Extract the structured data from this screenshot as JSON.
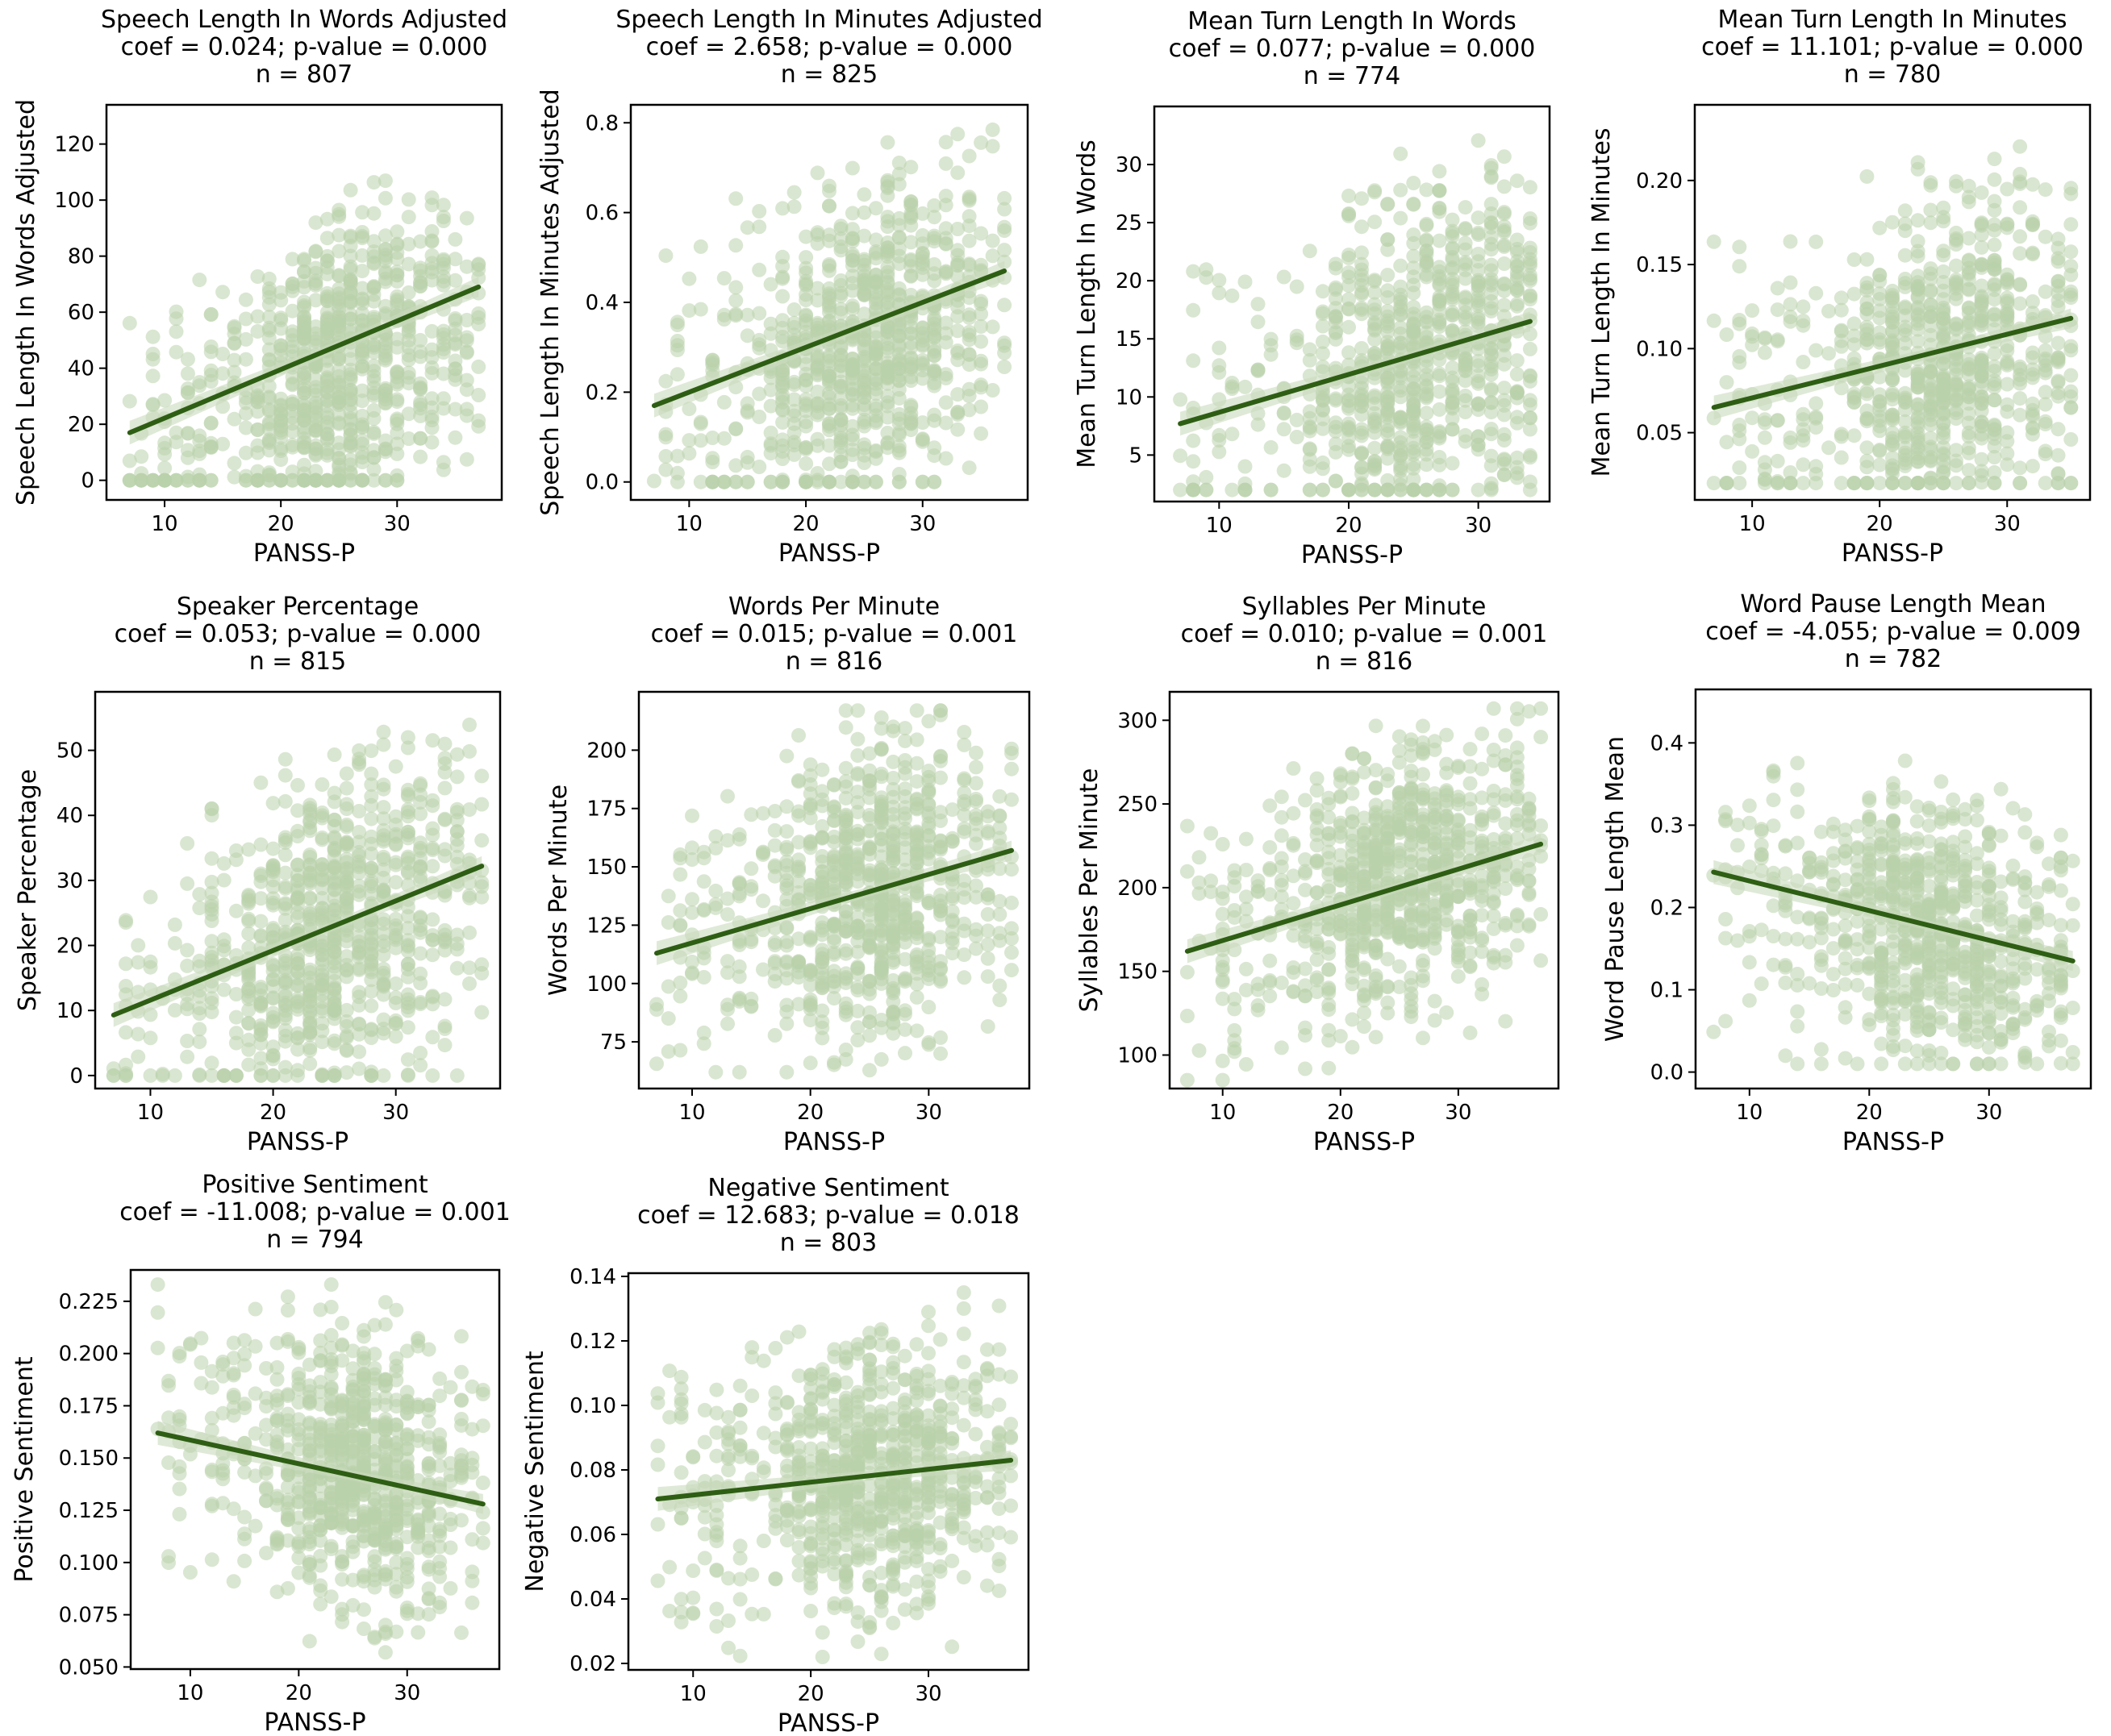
{
  "figure": {
    "x_common_label": "PANSS-P",
    "colors": {
      "points": "#b9d2ac",
      "line": "#2e5e14",
      "band": "#c9dbbd",
      "axis": "#000000"
    }
  },
  "chart_data": [
    {
      "type": "scatter",
      "title": "Speech Length In Words Adjusted",
      "stats_line": "coef = 0.024; p-value = 0.000",
      "n_label": "n = 807",
      "xlabel": "PANSS-P",
      "ylabel": "Speech Length In Words Adjusted",
      "xlim": [
        5,
        39
      ],
      "ylim": [
        -7,
        134
      ],
      "xticks": [
        10,
        20,
        30
      ],
      "yticks": [
        0,
        20,
        40,
        60,
        80,
        100,
        120
      ],
      "ytick_labels": [
        "0",
        "20",
        "40",
        "60",
        "80",
        "100",
        "120"
      ],
      "x_range": [
        7,
        37
      ],
      "y_range": [
        0,
        128
      ],
      "y_center": 42,
      "y_spread": 26,
      "fit": {
        "x": [
          7,
          37
        ],
        "y": [
          17,
          69
        ]
      }
    },
    {
      "type": "scatter",
      "title": "Speech Length In Minutes Adjusted",
      "stats_line": "coef = 2.658; p-value = 0.000",
      "n_label": "n = 825",
      "xlabel": "PANSS-P",
      "ylabel": "Speech Length In Minutes Adjusted",
      "xlim": [
        5,
        39
      ],
      "ylim": [
        -0.04,
        0.84
      ],
      "xticks": [
        10,
        20,
        30
      ],
      "yticks": [
        0,
        0.2,
        0.4,
        0.6,
        0.8
      ],
      "ytick_labels": [
        "0.0",
        "0.2",
        "0.4",
        "0.6",
        "0.8"
      ],
      "x_range": [
        7,
        37
      ],
      "y_range": [
        0.0,
        0.79
      ],
      "y_center": 0.32,
      "y_spread": 0.17,
      "fit": {
        "x": [
          7,
          37
        ],
        "y": [
          0.17,
          0.47
        ]
      }
    },
    {
      "type": "scatter",
      "title": "Mean Turn Length In Words",
      "stats_line": "coef = 0.077; p-value = 0.000",
      "n_label": "n = 774",
      "xlabel": "PANSS-P",
      "ylabel": "Mean Turn Length In Words",
      "xlim": [
        5,
        35.5
      ],
      "ylim": [
        1,
        35
      ],
      "xticks": [
        10,
        20,
        30
      ],
      "yticks": [
        5,
        10,
        15,
        20,
        25,
        30
      ],
      "ytick_labels": [
        "5",
        "10",
        "15",
        "20",
        "25",
        "30"
      ],
      "x_range": [
        7,
        34
      ],
      "y_range": [
        2,
        33
      ],
      "y_center": 13,
      "y_spread": 7,
      "fit": {
        "x": [
          7,
          34
        ],
        "y": [
          7.7,
          16.5
        ]
      }
    },
    {
      "type": "scatter",
      "title": "Mean Turn Length In Minutes",
      "stats_line": "coef = 11.101; p-value = 0.000",
      "n_label": "n = 780",
      "xlabel": "PANSS-P",
      "ylabel": "Mean Turn Length In Minutes",
      "xlim": [
        5.5,
        36.5
      ],
      "ylim": [
        0.01,
        0.245
      ],
      "xticks": [
        10,
        20,
        30
      ],
      "yticks": [
        0.05,
        0.1,
        0.15,
        0.2
      ],
      "ytick_labels": [
        "0.05",
        "0.10",
        "0.15",
        "0.20"
      ],
      "x_range": [
        7,
        35
      ],
      "y_range": [
        0.02,
        0.235
      ],
      "y_center": 0.09,
      "y_spread": 0.045,
      "fit": {
        "x": [
          7,
          35
        ],
        "y": [
          0.065,
          0.118
        ]
      }
    },
    {
      "type": "scatter",
      "title": "Speaker Percentage",
      "stats_line": "coef = 0.053; p-value = 0.000",
      "n_label": "n = 815",
      "xlabel": "PANSS-P",
      "ylabel": "Speaker Percentage",
      "xlim": [
        5.5,
        38.5
      ],
      "ylim": [
        -2,
        59
      ],
      "xticks": [
        10,
        20,
        30
      ],
      "yticks": [
        0,
        10,
        20,
        30,
        40,
        50
      ],
      "ytick_labels": [
        "0",
        "10",
        "20",
        "30",
        "40",
        "50"
      ],
      "x_range": [
        7,
        37
      ],
      "y_range": [
        0,
        56
      ],
      "y_center": 22,
      "y_spread": 12,
      "fit": {
        "x": [
          7,
          37
        ],
        "y": [
          9.3,
          32.2
        ]
      }
    },
    {
      "type": "scatter",
      "title": "Words Per Minute",
      "stats_line": "coef = 0.015; p-value = 0.001",
      "n_label": "n = 816",
      "xlabel": "PANSS-P",
      "ylabel": "Words Per Minute",
      "xlim": [
        5.5,
        38.5
      ],
      "ylim": [
        55,
        225
      ],
      "xticks": [
        10,
        20,
        30
      ],
      "yticks": [
        75,
        100,
        125,
        150,
        175,
        200
      ],
      "ytick_labels": [
        "75",
        "100",
        "125",
        "150",
        "175",
        "200"
      ],
      "x_range": [
        7,
        37
      ],
      "y_range": [
        62,
        217
      ],
      "y_center": 140,
      "y_spread": 30,
      "fit": {
        "x": [
          7,
          37
        ],
        "y": [
          113,
          157
        ]
      }
    },
    {
      "type": "scatter",
      "title": "Syllables Per Minute",
      "stats_line": "coef = 0.010; p-value = 0.001",
      "n_label": "n = 816",
      "xlabel": "PANSS-P",
      "ylabel": "Syllables Per Minute",
      "xlim": [
        5.5,
        38.5
      ],
      "ylim": [
        80,
        317
      ],
      "xticks": [
        10,
        20,
        30
      ],
      "yticks": [
        100,
        150,
        200,
        250,
        300
      ],
      "ytick_labels": [
        "100",
        "150",
        "200",
        "250",
        "300"
      ],
      "x_range": [
        7,
        37
      ],
      "y_range": [
        85,
        307
      ],
      "y_center": 205,
      "y_spread": 40,
      "fit": {
        "x": [
          7,
          37
        ],
        "y": [
          162,
          226
        ]
      }
    },
    {
      "type": "scatter",
      "title": "Word Pause Length Mean",
      "stats_line": "coef = -4.055; p-value = 0.009",
      "n_label": "n = 782",
      "xlabel": "PANSS-P",
      "ylabel": "Word Pause Length Mean",
      "xlim": [
        5.5,
        38.5
      ],
      "ylim": [
        -0.02,
        0.465
      ],
      "xticks": [
        10,
        20,
        30
      ],
      "yticks": [
        0,
        0.1,
        0.2,
        0.3,
        0.4
      ],
      "ytick_labels": [
        "0.0",
        "0.1",
        "0.2",
        "0.3",
        "0.4"
      ],
      "x_range": [
        7,
        37
      ],
      "y_range": [
        0.01,
        0.44
      ],
      "y_center": 0.17,
      "y_spread": 0.08,
      "fit": {
        "x": [
          7,
          37
        ],
        "y": [
          0.243,
          0.135
        ]
      }
    },
    {
      "type": "scatter",
      "title": "Positive Sentiment",
      "stats_line": "coef = -11.008; p-value = 0.001",
      "n_label": "n = 794",
      "xlabel": "PANSS-P",
      "ylabel": "Positive Sentiment",
      "xlim": [
        4.5,
        38.5
      ],
      "ylim": [
        0.049,
        0.24
      ],
      "xticks": [
        10,
        20,
        30
      ],
      "yticks": [
        0.05,
        0.075,
        0.1,
        0.125,
        0.15,
        0.175,
        0.2,
        0.225
      ],
      "ytick_labels": [
        "0.050",
        "0.075",
        "0.100",
        "0.125",
        "0.150",
        "0.175",
        "0.200",
        "0.225"
      ],
      "x_range": [
        7,
        37
      ],
      "y_range": [
        0.057,
        0.233
      ],
      "y_center": 0.145,
      "y_spread": 0.033,
      "fit": {
        "x": [
          7,
          37
        ],
        "y": [
          0.162,
          0.128
        ]
      }
    },
    {
      "type": "scatter",
      "title": "Negative Sentiment",
      "stats_line": "coef = 12.683; p-value = 0.018",
      "n_label": "n = 803",
      "xlabel": "PANSS-P",
      "ylabel": "Negative Sentiment",
      "xlim": [
        4.5,
        38.5
      ],
      "ylim": [
        0.018,
        0.141
      ],
      "xticks": [
        10,
        20,
        30
      ],
      "yticks": [
        0.02,
        0.04,
        0.06,
        0.08,
        0.1,
        0.12,
        0.14
      ],
      "ytick_labels": [
        "0.02",
        "0.04",
        "0.06",
        "0.08",
        "0.10",
        "0.12",
        "0.14"
      ],
      "x_range": [
        7,
        37
      ],
      "y_range": [
        0.022,
        0.135
      ],
      "y_center": 0.078,
      "y_spread": 0.021,
      "fit": {
        "x": [
          7,
          37
        ],
        "y": [
          0.071,
          0.083
        ]
      }
    }
  ]
}
